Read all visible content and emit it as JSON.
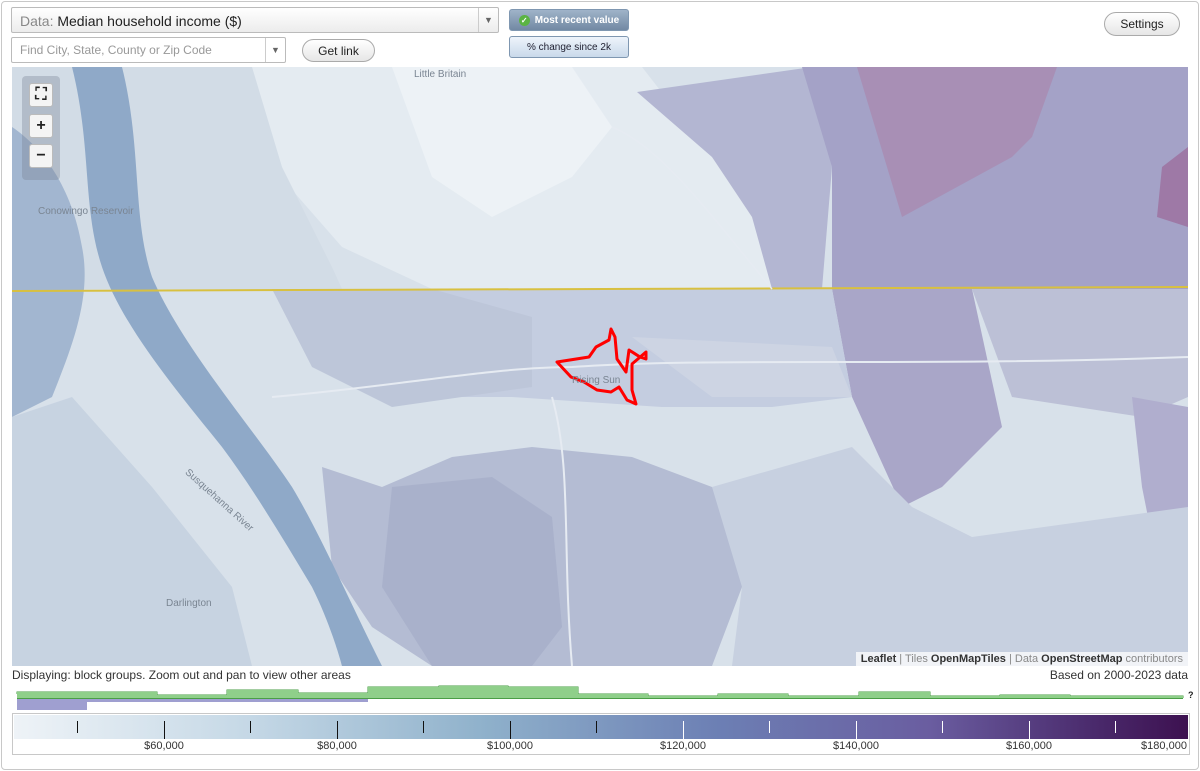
{
  "data_select": {
    "prefix": "Data:",
    "value": "Median household income ($)"
  },
  "search": {
    "placeholder": "Find City, State, County or Zip Code"
  },
  "buttons": {
    "get_link": "Get link",
    "settings": "Settings"
  },
  "mode": {
    "most_recent": "Most recent value",
    "pct_change": "% change since 2k"
  },
  "map": {
    "labels": {
      "little_britain": "Little Britain",
      "conowingo": "Conowingo Reservoir",
      "rising_sun": "Rising Sun",
      "susquehanna": "Susquehanna River",
      "darlington": "Darlington"
    },
    "attribution": {
      "leaflet": "Leaflet",
      "sep": " | ",
      "tiles_pre": "Tiles ",
      "tiles": "OpenMapTiles",
      "data_pre": "Data ",
      "osm": "OpenStreetMap",
      "contrib": " contributors"
    },
    "highlight_color": "#ff0000",
    "border_line_color": "#d8c040"
  },
  "status": {
    "displaying": "Displaying: block groups. Zoom out and pan to view other areas",
    "based_on": "Based on 2000-2023 data"
  },
  "histogram": {
    "question": "?"
  },
  "legend": {
    "labels": [
      "$60,000",
      "$80,000",
      "$100,000",
      "$120,000",
      "$140,000",
      "$160,000",
      "$180,000"
    ]
  },
  "colors": {
    "histogram_green": "#8fcf8a",
    "histogram_purple": "#9f9fd0"
  }
}
